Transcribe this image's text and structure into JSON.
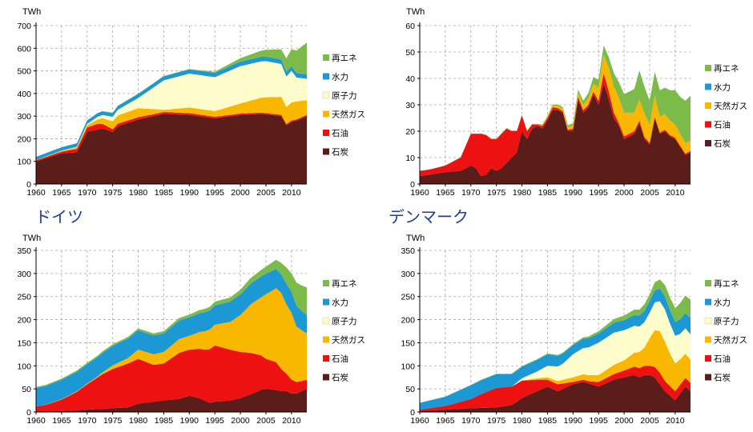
{
  "colors": {
    "renewables": "#7cba4a",
    "hydro": "#1c98d4",
    "nuclear": "#fffccc",
    "gas": "#f9b700",
    "oil": "#ee1111",
    "coal": "#5b1d1a",
    "oil_edge": "#c8c8c8"
  },
  "chart_data": [
    {
      "type": "area",
      "country": "ドイツ",
      "unit": "TWh",
      "ylim": [
        0,
        700
      ],
      "yticks": [
        0,
        100,
        200,
        300,
        400,
        500,
        600,
        700
      ],
      "xlim": [
        1960,
        2013
      ],
      "xticks": [
        1960,
        1965,
        1970,
        1975,
        1980,
        1985,
        1990,
        1995,
        2000,
        2005,
        2010
      ],
      "legend_position": "right",
      "grid": "dashed",
      "series": [
        {
          "name": "石炭",
          "key": "coal",
          "x": [
            1960,
            1965,
            1968,
            1970,
            1973,
            1975,
            1976,
            1980,
            1985,
            1990,
            1995,
            2000,
            2004,
            2008,
            2009,
            2010,
            2011,
            2013
          ],
          "values": [
            100,
            135,
            140,
            230,
            245,
            230,
            255,
            285,
            310,
            305,
            290,
            305,
            310,
            300,
            260,
            275,
            280,
            300
          ]
        },
        {
          "name": "石油",
          "key": "oil",
          "x": [
            1960,
            1965,
            1970,
            1972,
            1975,
            1980,
            1985,
            1990,
            2000,
            2013
          ],
          "values": [
            5,
            8,
            20,
            25,
            12,
            10,
            8,
            8,
            6,
            5
          ]
        },
        {
          "name": "天然ガス",
          "key": "gas",
          "x": [
            1960,
            1965,
            1970,
            1975,
            1980,
            1985,
            1990,
            1995,
            2000,
            2005,
            2008,
            2009,
            2010,
            2011,
            2013
          ],
          "values": [
            1,
            3,
            10,
            35,
            40,
            10,
            25,
            25,
            45,
            70,
            80,
            75,
            80,
            80,
            65
          ]
        },
        {
          "name": "原子力",
          "key": "nuclear",
          "x": [
            1960,
            1968,
            1970,
            1975,
            1980,
            1985,
            1990,
            1995,
            2000,
            2005,
            2008,
            2009,
            2010,
            2011,
            2012,
            2013
          ],
          "values": [
            0,
            2,
            5,
            20,
            45,
            130,
            150,
            150,
            165,
            160,
            145,
            135,
            140,
            105,
            100,
            95
          ]
        },
        {
          "name": "水力",
          "key": "hydro",
          "x": [
            1960,
            1970,
            1980,
            1990,
            2000,
            2010,
            2013
          ],
          "values": [
            14,
            16,
            18,
            18,
            20,
            20,
            20
          ]
        },
        {
          "name": "再エネ",
          "key": "renewables",
          "x": [
            1960,
            1990,
            1995,
            2000,
            2005,
            2008,
            2010,
            2011,
            2013
          ],
          "values": [
            0,
            2,
            5,
            15,
            30,
            45,
            75,
            100,
            140
          ]
        }
      ]
    },
    {
      "type": "area",
      "country": "デンマーク",
      "unit": "TWh",
      "ylim": [
        0,
        60
      ],
      "yticks": [
        0,
        10,
        20,
        30,
        40,
        50,
        60
      ],
      "xlim": [
        1960,
        2013
      ],
      "xticks": [
        1960,
        1965,
        1970,
        1975,
        1980,
        1985,
        1990,
        1995,
        2000,
        2005,
        2010
      ],
      "legend_position": "right",
      "grid": "dashed",
      "series": [
        {
          "name": "石炭",
          "key": "coal",
          "x": [
            1960,
            1962,
            1965,
            1968,
            1970,
            1971,
            1972,
            1973,
            1974,
            1975,
            1976,
            1977,
            1978,
            1979,
            1980,
            1981,
            1982,
            1983,
            1984,
            1985,
            1986,
            1987,
            1988,
            1989,
            1990,
            1991,
            1992,
            1993,
            1994,
            1995,
            1996,
            1997,
            1998,
            1999,
            2000,
            2001,
            2002,
            2003,
            2004,
            2005,
            2006,
            2007,
            2008,
            2009,
            2010,
            2011,
            2012,
            2013
          ],
          "values": [
            3,
            3.5,
            4.5,
            5,
            7,
            6,
            3,
            3.5,
            6,
            5,
            6,
            8,
            10,
            12,
            20,
            17,
            21,
            22,
            21,
            24,
            28,
            28,
            27,
            20,
            20,
            32,
            27,
            29,
            34,
            30,
            38,
            32,
            25,
            22,
            17,
            18,
            19,
            23,
            17,
            15,
            25,
            19,
            20,
            18,
            17,
            14,
            11,
            12
          ]
        },
        {
          "name": "石油",
          "key": "oil",
          "x": [
            1960,
            1962,
            1965,
            1968,
            1970,
            1971,
            1972,
            1973,
            1974,
            1975,
            1976,
            1977,
            1978,
            1979,
            1980,
            1981,
            1982,
            1983,
            1984,
            1985,
            1986,
            1987,
            1988,
            1989,
            1990,
            1991,
            1992,
            1993,
            1994,
            1995,
            1996,
            1997,
            1998,
            1999,
            2000,
            2001,
            2002,
            2003,
            2005,
            2013
          ],
          "values": [
            2,
            2,
            2.5,
            5,
            12,
            13,
            16,
            15,
            11,
            12,
            13,
            13,
            10,
            8,
            6,
            3,
            1.5,
            0.5,
            1,
            1,
            1,
            0.8,
            0.5,
            0.5,
            1,
            1,
            1,
            1,
            1,
            1.5,
            4,
            3,
            2,
            1,
            1,
            1,
            1,
            1,
            0.5,
            0.5
          ]
        },
        {
          "name": "天然ガス",
          "key": "gas",
          "x": [
            1960,
            1983,
            1985,
            1988,
            1990,
            1992,
            1994,
            1995,
            1996,
            1997,
            1998,
            2000,
            2002,
            2003,
            2004,
            2005,
            2006,
            2007,
            2008,
            2010,
            2012,
            2013
          ],
          "values": [
            0,
            0,
            0.5,
            1,
            1,
            2,
            3,
            5,
            7,
            9,
            10,
            9,
            7,
            8,
            9,
            7,
            8,
            6,
            6,
            5,
            4,
            4
          ]
        },
        {
          "name": "水力",
          "key": "hydro",
          "x": [
            1960,
            2013
          ],
          "values": [
            0,
            0
          ]
        },
        {
          "name": "再エネ",
          "key": "renewables",
          "x": [
            1960,
            1985,
            1988,
            1990,
            1992,
            1994,
            1995,
            1996,
            1997,
            1998,
            2000,
            2001,
            2002,
            2003,
            2004,
            2005,
            2006,
            2007,
            2008,
            2010,
            2011,
            2012,
            2013
          ],
          "values": [
            0,
            0.3,
            0.6,
            1,
            1.5,
            2.5,
            3,
            3.5,
            4,
            5,
            7,
            8,
            9,
            11,
            10,
            9,
            9,
            10,
            10,
            13,
            14,
            16,
            17
          ]
        }
      ]
    },
    {
      "type": "area",
      "country": "",
      "unit": "TWh",
      "ylim": [
        0,
        350
      ],
      "yticks": [
        0,
        50,
        100,
        150,
        200,
        250,
        300,
        350
      ],
      "xlim": [
        1960,
        2013
      ],
      "xticks": [
        1960,
        1965,
        1970,
        1975,
        1980,
        1985,
        1990,
        1995,
        2000,
        2005,
        2010
      ],
      "legend_position": "right",
      "grid": "dashed",
      "series": [
        {
          "name": "石炭",
          "key": "coal",
          "x": [
            1960,
            1965,
            1970,
            1975,
            1978,
            1980,
            1983,
            1985,
            1988,
            1990,
            1992,
            1994,
            1995,
            1998,
            2000,
            2002,
            2004,
            2005,
            2007,
            2008,
            2009,
            2010,
            2011,
            2012,
            2013
          ],
          "values": [
            0,
            2,
            5,
            8,
            10,
            18,
            22,
            25,
            28,
            35,
            30,
            20,
            22,
            25,
            30,
            38,
            48,
            50,
            48,
            45,
            45,
            40,
            40,
            45,
            50
          ]
        },
        {
          "name": "石油",
          "key": "oil",
          "x": [
            1960,
            1962,
            1965,
            1968,
            1970,
            1973,
            1975,
            1978,
            1980,
            1983,
            1985,
            1988,
            1990,
            1993,
            1995,
            1998,
            2000,
            2002,
            2004,
            2005,
            2007,
            2008,
            2009,
            2010,
            2011,
            2012,
            2013
          ],
          "values": [
            12,
            15,
            25,
            40,
            55,
            75,
            85,
            95,
            97,
            80,
            80,
            100,
            100,
            110,
            122,
            110,
            100,
            90,
            75,
            65,
            60,
            48,
            38,
            30,
            25,
            22,
            20
          ]
        },
        {
          "name": "天然ガス",
          "key": "gas",
          "x": [
            1960,
            1972,
            1975,
            1978,
            1980,
            1985,
            1988,
            1990,
            1993,
            1995,
            1998,
            2000,
            2002,
            2004,
            2005,
            2006,
            2007,
            2008,
            2009,
            2010,
            2011,
            2012,
            2013
          ],
          "values": [
            0,
            2,
            8,
            12,
            20,
            25,
            30,
            30,
            40,
            45,
            60,
            80,
            105,
            125,
            140,
            150,
            160,
            165,
            150,
            145,
            120,
            110,
            100
          ]
        },
        {
          "name": "原子力",
          "key": "nuclear",
          "x": [
            1960,
            1980,
            2013
          ],
          "values": [
            0,
            0,
            0
          ]
        },
        {
          "name": "水力",
          "key": "hydro",
          "x": [
            1960,
            1965,
            1970,
            1975,
            1980,
            1985,
            1990,
            1995,
            2000,
            2005,
            2008,
            2009,
            2010,
            2011,
            2012,
            2013
          ],
          "values": [
            40,
            42,
            42,
            42,
            42,
            40,
            40,
            42,
            45,
            45,
            40,
            45,
            45,
            45,
            42,
            40
          ]
        },
        {
          "name": "再エネ",
          "key": "renewables",
          "x": [
            1960,
            1970,
            1980,
            1990,
            1995,
            2000,
            2005,
            2007,
            2008,
            2009,
            2010,
            2011,
            2012,
            2013
          ],
          "values": [
            2,
            3,
            4,
            6,
            8,
            10,
            15,
            20,
            25,
            35,
            40,
            50,
            55,
            60
          ]
        }
      ]
    },
    {
      "type": "area",
      "country": "",
      "unit": "TWh",
      "ylim": [
        0,
        350
      ],
      "yticks": [
        0,
        50,
        100,
        150,
        200,
        250,
        300,
        350
      ],
      "xlim": [
        1960,
        2013
      ],
      "xticks": [
        1960,
        1965,
        1970,
        1975,
        1980,
        1985,
        1990,
        1995,
        2000,
        2005,
        2010
      ],
      "legend_position": "right",
      "grid": "dashed",
      "series": [
        {
          "name": "石炭",
          "key": "coal",
          "x": [
            1960,
            1965,
            1970,
            1975,
            1978,
            1980,
            1983,
            1985,
            1987,
            1990,
            1992,
            1995,
            1998,
            2000,
            2002,
            2003,
            2004,
            2005,
            2006,
            2007,
            2008,
            2009,
            2010,
            2011,
            2012,
            2013
          ],
          "values": [
            2,
            5,
            8,
            10,
            15,
            30,
            45,
            55,
            45,
            60,
            65,
            55,
            70,
            75,
            80,
            75,
            80,
            80,
            75,
            60,
            45,
            35,
            25,
            40,
            55,
            45
          ]
        },
        {
          "name": "石油",
          "key": "oil",
          "x": [
            1960,
            1965,
            1970,
            1972,
            1975,
            1978,
            1980,
            1983,
            1985,
            1987,
            1990,
            1993,
            1995,
            1998,
            2000,
            2003,
            2005,
            2007,
            2008,
            2010,
            2013
          ],
          "values": [
            3,
            8,
            20,
            30,
            42,
            40,
            38,
            25,
            15,
            15,
            5,
            5,
            10,
            12,
            15,
            20,
            20,
            25,
            22,
            20,
            18
          ]
        },
        {
          "name": "天然ガス",
          "key": "gas",
          "x": [
            1960,
            1980,
            1985,
            1990,
            1995,
            1998,
            2000,
            2002,
            2004,
            2005,
            2006,
            2007,
            2008,
            2009,
            2010,
            2011,
            2013
          ],
          "values": [
            0,
            0,
            5,
            10,
            15,
            20,
            22,
            30,
            40,
            60,
            80,
            90,
            85,
            70,
            60,
            55,
            50
          ]
        },
        {
          "name": "原子力",
          "key": "nuclear",
          "x": [
            1960,
            1978,
            1980,
            1983,
            1985,
            1988,
            1990,
            1993,
            1995,
            1998,
            2000,
            2003,
            2005,
            2007,
            2008,
            2009,
            2010,
            2011,
            2013
          ],
          "values": [
            0,
            0,
            5,
            15,
            25,
            35,
            50,
            60,
            70,
            70,
            65,
            55,
            55,
            65,
            70,
            65,
            60,
            55,
            55
          ]
        },
        {
          "name": "水力",
          "key": "hydro",
          "x": [
            1960,
            1965,
            1970,
            1975,
            1980,
            1985,
            1990,
            1995,
            2000,
            2005,
            2010,
            2013
          ],
          "values": [
            15,
            20,
            30,
            30,
            25,
            25,
            20,
            20,
            22,
            25,
            30,
            35
          ]
        },
        {
          "name": "再エネ",
          "key": "renewables",
          "x": [
            1960,
            1990,
            1995,
            2000,
            2005,
            2007,
            2008,
            2010,
            2011,
            2013
          ],
          "values": [
            0,
            2,
            5,
            10,
            15,
            20,
            25,
            30,
            35,
            40
          ]
        }
      ]
    }
  ]
}
